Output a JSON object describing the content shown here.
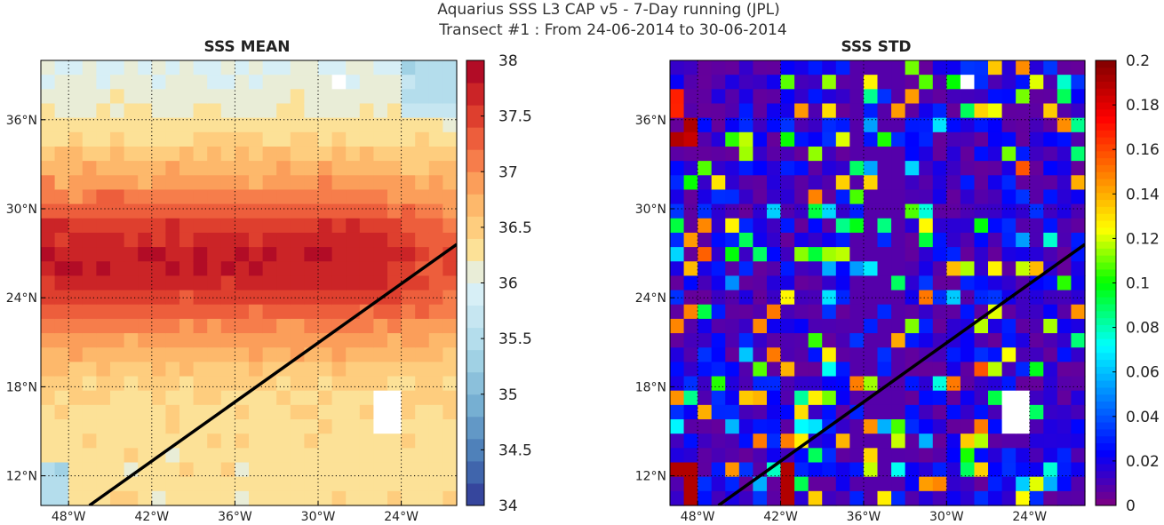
{
  "figure": {
    "title_line1": "Aquarius SSS L3 CAP v5 - 7-Day running (JPL)",
    "title_line2": "Transect #1 : From 24-06-2014 to 30-06-2014"
  },
  "chart_data": [
    {
      "type": "heatmap",
      "title": "SSS MEAN",
      "map_extent": {
        "lon": [
          -50,
          -20
        ],
        "lat": [
          10,
          40
        ]
      },
      "x_ticks": [
        "48°W",
        "42°W",
        "36°W",
        "30°W",
        "24°W"
      ],
      "x_tick_values": [
        -48,
        -42,
        -36,
        -30,
        -24
      ],
      "y_ticks": [
        "36°N",
        "30°N",
        "24°N",
        "18°N",
        "12°N"
      ],
      "y_tick_values": [
        36,
        30,
        24,
        18,
        12
      ],
      "grid": true,
      "colorbar": {
        "range": [
          34,
          38
        ],
        "ticks": [
          "38",
          "37.5",
          "37",
          "36.5",
          "36",
          "35.5",
          "35",
          "34.5",
          "34"
        ],
        "tick_values": [
          38,
          37.5,
          37,
          36.5,
          36,
          35.5,
          35,
          34.5,
          34
        ],
        "colormap": "blue-white-red (RdYlBu reversed), 20 levels"
      },
      "approx_field": "Maximum ~37.8 near 25-27°N, 35-42°W; ~36.2-36.8 north of 33°N and south of 17°N; fresher ~35.5-36 near 38°N 22°W and 11-12°N 50°W; missing cells near 39°N 28°W and 16°N 25°W",
      "transect": {
        "start": {
          "lon": -46.5,
          "lat": 10
        },
        "end": {
          "lon": -20,
          "lat": 27.6
        },
        "color": "#000000"
      }
    },
    {
      "type": "heatmap",
      "title": "SSS STD",
      "map_extent": {
        "lon": [
          -50,
          -20
        ],
        "lat": [
          10,
          40
        ]
      },
      "x_ticks": [
        "48°W",
        "42°W",
        "36°W",
        "30°W",
        "24°W"
      ],
      "x_tick_values": [
        -48,
        -42,
        -36,
        -30,
        -24
      ],
      "y_ticks": [
        "36°N",
        "30°N",
        "24°N",
        "18°N",
        "12°N"
      ],
      "y_tick_values": [
        36,
        30,
        24,
        18,
        12
      ],
      "grid": true,
      "colorbar": {
        "range": [
          0,
          0.2
        ],
        "ticks": [
          "0.2",
          "0.18",
          "0.16",
          "0.14",
          "0.12",
          "0.1",
          "0.08",
          "0.06",
          "0.04",
          "0.02",
          "0"
        ],
        "tick_values": [
          0.2,
          0.18,
          0.16,
          0.14,
          0.12,
          0.1,
          0.08,
          0.06,
          0.04,
          0.02,
          0
        ],
        "colormap": "jet"
      },
      "approx_field": "Mostly 0.01-0.05; scattered cells 0.06-0.14; highest ~0.18-0.2 near 35-37°N 49°W and 12-13°N 49°W and 41°W; missing cells near 39°N 28°W and 16°N 25°W",
      "transect": {
        "start": {
          "lon": -46.5,
          "lat": 10
        },
        "end": {
          "lon": -20,
          "lat": 27.6
        },
        "color": "#000000"
      }
    }
  ]
}
